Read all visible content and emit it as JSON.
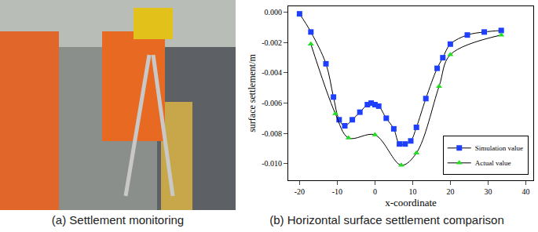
{
  "panels": {
    "a": {
      "caption": "(a) Settlement monitoring"
    },
    "b": {
      "caption": "(b) Horizontal surface settlement comparison"
    }
  },
  "chart_data": {
    "type": "line",
    "x_label": "x-coordinate",
    "y_label": "surface settlement/m",
    "series": [
      {
        "name": "Simulation value",
        "color": "#1f3fff",
        "marker": "square",
        "line_style": "smooth",
        "x": [
          -20,
          -17,
          -13,
          -11,
          -9.5,
          -8,
          -6,
          -4,
          -2,
          -1,
          0,
          1,
          3,
          5,
          6.5,
          8,
          9.5,
          11,
          13.5,
          16.5,
          18,
          20,
          24.5,
          29,
          33.5
        ],
        "values": [
          -0.0001,
          -0.0013,
          -0.0034,
          -0.0056,
          -0.0071,
          -0.0075,
          -0.0071,
          -0.0066,
          -0.0061,
          -0.006,
          -0.0061,
          -0.0062,
          -0.007,
          -0.0077,
          -0.0087,
          -0.0087,
          -0.0085,
          -0.0076,
          -0.0057,
          -0.0037,
          -0.003,
          -0.0021,
          -0.0015,
          -0.0013,
          -0.0012
        ]
      },
      {
        "name": "Actual value",
        "color": "#22dd22",
        "marker": "triangle-up",
        "line_style": "smooth",
        "x": [
          -17,
          -10.5,
          -7,
          0,
          7,
          11,
          17,
          20,
          33.5
        ],
        "values": [
          -0.0021,
          -0.0067,
          -0.0083,
          -0.0081,
          -0.0101,
          -0.0093,
          -0.0049,
          -0.0028,
          -0.0015
        ]
      }
    ],
    "xlim": [
      -23,
      42
    ],
    "xticks": [
      -20,
      -10,
      0,
      10,
      20,
      30,
      40
    ],
    "ylim": [
      -0.0111,
      0.0004
    ],
    "yticks": [
      {
        "value": -0.01,
        "label": "-0.010"
      },
      {
        "value": -0.008,
        "label": "-0.008"
      },
      {
        "value": -0.006,
        "label": "-0.006"
      },
      {
        "value": -0.004,
        "label": "-0.004"
      },
      {
        "value": -0.002,
        "label": "-0.002"
      },
      {
        "value": 0,
        "label": "0.000"
      }
    ],
    "grid": false,
    "legend": "lower right"
  }
}
